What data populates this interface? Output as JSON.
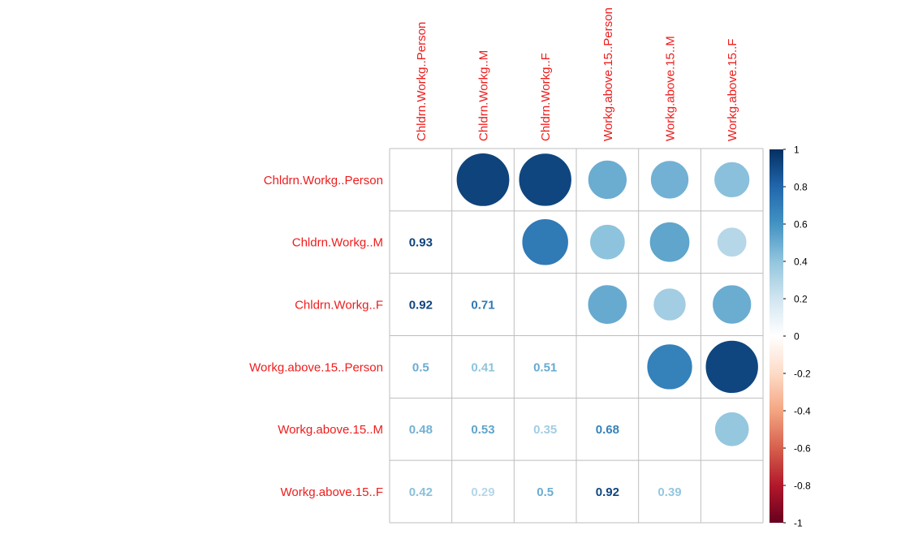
{
  "chart_data": {
    "type": "heatmap",
    "variables": [
      "Chldrn.Workg..Person",
      "Chldrn.Workg..M",
      "Chldrn.Workg..F",
      "Workg.above.15..Person",
      "Workg.above.15..M",
      "Workg.above.15..F"
    ],
    "matrix": [
      [
        1,
        0.93,
        0.92,
        0.5,
        0.48,
        0.42
      ],
      [
        0.93,
        1,
        0.71,
        0.41,
        0.53,
        0.29
      ],
      [
        0.92,
        0.71,
        1,
        0.51,
        0.35,
        0.5
      ],
      [
        0.5,
        0.41,
        0.51,
        1,
        0.68,
        0.92
      ],
      [
        0.48,
        0.53,
        0.35,
        0.68,
        1,
        0.39
      ],
      [
        0.42,
        0.29,
        0.5,
        0.92,
        0.39,
        1
      ]
    ],
    "lower_triangle": "number",
    "upper_triangle": "circle",
    "diagonal": "blank",
    "colorbar": {
      "range": [
        -1,
        1
      ],
      "ticks": [
        "1",
        "0.8",
        "0.6",
        "0.4",
        "0.2",
        "0",
        "-0.2",
        "-0.4",
        "-0.6",
        "-0.8",
        "-1"
      ],
      "placement": "right"
    },
    "label_color": "#ee1c1c",
    "grid": true
  }
}
